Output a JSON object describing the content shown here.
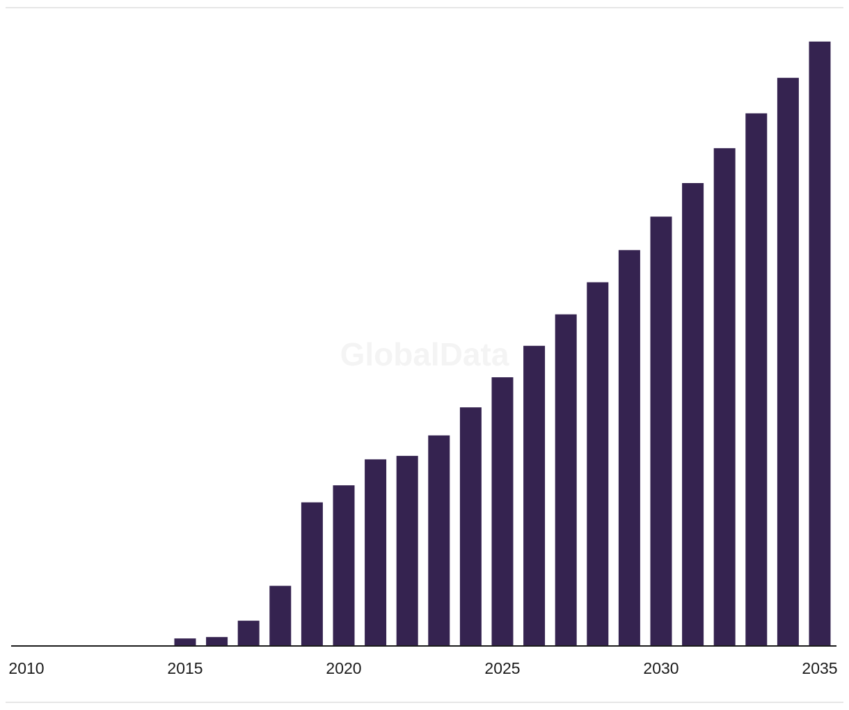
{
  "watermark": "GlobalData",
  "colors": {
    "bar": "#352350",
    "axis": "#1a1a1a",
    "tick_text": "#1a1a1a",
    "rule": "#e6e6e6"
  },
  "chart_data": {
    "type": "bar",
    "title": "",
    "xlabel": "",
    "ylabel": "",
    "categories": [
      2010,
      2011,
      2012,
      2013,
      2014,
      2015,
      2016,
      2017,
      2018,
      2019,
      2020,
      2021,
      2022,
      2023,
      2024,
      2025,
      2026,
      2027,
      2028,
      2029,
      2030,
      2031,
      2032,
      2033,
      2034,
      2035
    ],
    "values": [
      0,
      0,
      0,
      0,
      0,
      11,
      13,
      37,
      88,
      210,
      235,
      273,
      278,
      308,
      349,
      393,
      439,
      485,
      532,
      579,
      628,
      677,
      728,
      779,
      831,
      884
    ],
    "ylim": [
      0,
      900
    ],
    "x_tick_labels": [
      "2010",
      "2015",
      "2020",
      "2025",
      "2030",
      "2035"
    ],
    "y_axis_visible": false,
    "grid": false,
    "legend": "none"
  }
}
